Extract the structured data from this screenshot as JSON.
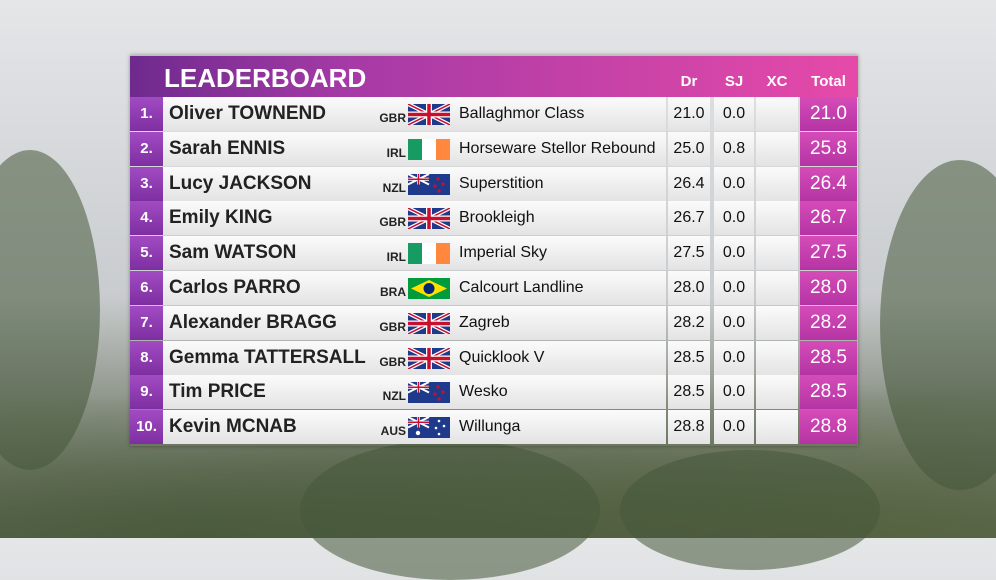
{
  "header": {
    "title": "LEADERBOARD",
    "columns": [
      "Dr",
      "SJ",
      "XC",
      "Total"
    ]
  },
  "rows": [
    {
      "rank": "1.",
      "name": "Oliver TOWNEND",
      "nation": "GBR",
      "horse": "Ballaghmor Class",
      "dr": "21.0",
      "sj": "0.0",
      "total": "21.0"
    },
    {
      "rank": "2.",
      "name": "Sarah ENNIS",
      "nation": "IRL",
      "horse": "Horseware Stellor Rebound",
      "dr": "25.0",
      "sj": "0.8",
      "total": "25.8"
    },
    {
      "rank": "3.",
      "name": "Lucy JACKSON",
      "nation": "NZL",
      "horse": "Superstition",
      "dr": "26.4",
      "sj": "0.0",
      "total": "26.4"
    },
    {
      "rank": "4.",
      "name": "Emily KING",
      "nation": "GBR",
      "horse": "Brookleigh",
      "dr": "26.7",
      "sj": "0.0",
      "total": "26.7"
    },
    {
      "rank": "5.",
      "name": "Sam WATSON",
      "nation": "IRL",
      "horse": "Imperial Sky",
      "dr": "27.5",
      "sj": "0.0",
      "total": "27.5"
    },
    {
      "rank": "6.",
      "name": "Carlos PARRO",
      "nation": "BRA",
      "horse": "Calcourt Landline",
      "dr": "28.0",
      "sj": "0.0",
      "total": "28.0"
    },
    {
      "rank": "7.",
      "name": "Alexander BRAGG",
      "nation": "GBR",
      "horse": "Zagreb",
      "dr": "28.2",
      "sj": "0.0",
      "total": "28.2"
    },
    {
      "rank": "8.",
      "name": "Gemma TATTERSALL",
      "nation": "GBR",
      "horse": "Quicklook V",
      "dr": "28.5",
      "sj": "0.0",
      "total": "28.5"
    },
    {
      "rank": "9.",
      "name": "Tim PRICE",
      "nation": "NZL",
      "horse": "Wesko",
      "dr": "28.5",
      "sj": "0.0",
      "total": "28.5"
    },
    {
      "rank": "10.",
      "name": "Kevin MCNAB",
      "nation": "AUS",
      "horse": "Willunga",
      "dr": "28.8",
      "sj": "0.0",
      "total": "28.8"
    }
  ]
}
